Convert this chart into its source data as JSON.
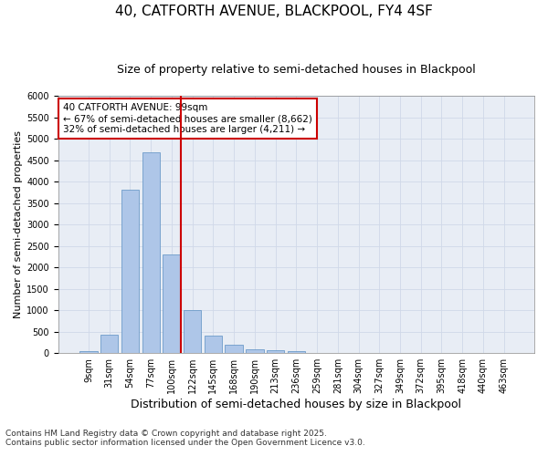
{
  "title1": "40, CATFORTH AVENUE, BLACKPOOL, FY4 4SF",
  "title2": "Size of property relative to semi-detached houses in Blackpool",
  "xlabel": "Distribution of semi-detached houses by size in Blackpool",
  "ylabel": "Number of semi-detached properties",
  "categories": [
    "9sqm",
    "31sqm",
    "54sqm",
    "77sqm",
    "100sqm",
    "122sqm",
    "145sqm",
    "168sqm",
    "190sqm",
    "213sqm",
    "236sqm",
    "259sqm",
    "281sqm",
    "304sqm",
    "327sqm",
    "349sqm",
    "372sqm",
    "395sqm",
    "418sqm",
    "440sqm",
    "463sqm"
  ],
  "bar_values": [
    50,
    440,
    3820,
    4680,
    2300,
    1000,
    410,
    200,
    90,
    65,
    55,
    0,
    0,
    0,
    0,
    0,
    0,
    0,
    0,
    0,
    0
  ],
  "bar_color": "#aec6e8",
  "bar_edgecolor": "#5a8fc2",
  "grid_color": "#d0d8e8",
  "background_color": "#e8edf5",
  "vline_color": "#cc0000",
  "vline_index": 4,
  "annotation_title": "40 CATFORTH AVENUE: 99sqm",
  "annotation_line1": "← 67% of semi-detached houses are smaller (8,662)",
  "annotation_line2": "32% of semi-detached houses are larger (4,211) →",
  "annotation_box_color": "#cc0000",
  "ylim": [
    0,
    6000
  ],
  "yticks": [
    0,
    500,
    1000,
    1500,
    2000,
    2500,
    3000,
    3500,
    4000,
    4500,
    5000,
    5500,
    6000
  ],
  "footnote1": "Contains HM Land Registry data © Crown copyright and database right 2025.",
  "footnote2": "Contains public sector information licensed under the Open Government Licence v3.0.",
  "title1_fontsize": 11,
  "title2_fontsize": 9,
  "xlabel_fontsize": 9,
  "ylabel_fontsize": 8,
  "tick_fontsize": 7,
  "annotation_fontsize": 7.5,
  "footnote_fontsize": 6.5
}
